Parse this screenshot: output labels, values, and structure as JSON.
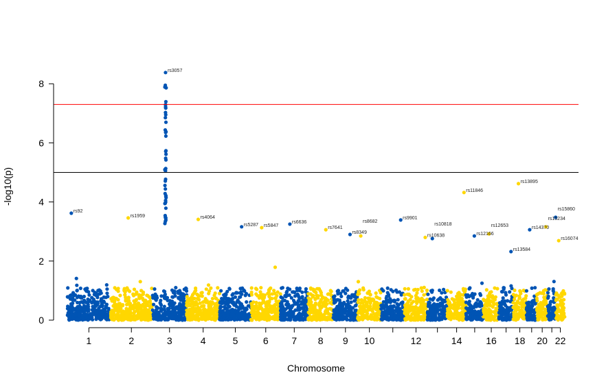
{
  "chart_data": {
    "type": "scatter",
    "subtype": "manhattan",
    "title": "",
    "xlabel": "Chromosome",
    "ylabel": "-log10(p)",
    "ylim": [
      0,
      8.4
    ],
    "yticks": [
      0,
      2,
      4,
      6,
      8
    ],
    "xtick_labels": [
      "1",
      "2",
      "3",
      "4",
      "5",
      "6",
      "7",
      "8",
      "9",
      "10",
      "12",
      "14",
      "16",
      "18",
      "20",
      "22"
    ],
    "chromosomes": [
      {
        "chr": 1,
        "length_mb": 249
      },
      {
        "chr": 2,
        "length_mb": 243
      },
      {
        "chr": 3,
        "length_mb": 198
      },
      {
        "chr": 4,
        "length_mb": 191
      },
      {
        "chr": 5,
        "length_mb": 181
      },
      {
        "chr": 6,
        "length_mb": 171
      },
      {
        "chr": 7,
        "length_mb": 159
      },
      {
        "chr": 8,
        "length_mb": 146
      },
      {
        "chr": 9,
        "length_mb": 141
      },
      {
        "chr": 10,
        "length_mb": 136
      },
      {
        "chr": 11,
        "length_mb": 135
      },
      {
        "chr": 12,
        "length_mb": 133
      },
      {
        "chr": 13,
        "length_mb": 115
      },
      {
        "chr": 14,
        "length_mb": 107
      },
      {
        "chr": 15,
        "length_mb": 102
      },
      {
        "chr": 16,
        "length_mb": 90
      },
      {
        "chr": 17,
        "length_mb": 81
      },
      {
        "chr": 18,
        "length_mb": 78
      },
      {
        "chr": 19,
        "length_mb": 59
      },
      {
        "chr": 20,
        "length_mb": 63
      },
      {
        "chr": 21,
        "length_mb": 48
      },
      {
        "chr": 22,
        "length_mb": 51
      }
    ],
    "colors": {
      "odd": "#0054b4",
      "even": "#ffd700",
      "genomewide_line": "#ff0000",
      "suggestive_line": "#000000"
    },
    "thresholds": {
      "genomewide": 7.3,
      "suggestive": 5.0
    },
    "annotated_snps": [
      {
        "label": "rs92",
        "chr": 1,
        "pos_mb": 23,
        "logp": 3.62
      },
      {
        "label": "rs1959",
        "chr": 2,
        "pos_mb": 103,
        "logp": 3.46
      },
      {
        "label": "rs3057",
        "chr": 3,
        "pos_mb": 76,
        "logp": 8.38
      },
      {
        "label": "rs4064",
        "chr": 4,
        "pos_mb": 67,
        "logp": 3.41
      },
      {
        "label": "rs5287",
        "chr": 5,
        "pos_mb": 127,
        "logp": 3.16
      },
      {
        "label": "rs5847",
        "chr": 6,
        "pos_mb": 62,
        "logp": 3.13
      },
      {
        "label": "rs6636",
        "chr": 7,
        "pos_mb": 54,
        "logp": 3.25
      },
      {
        "label": "rs7641",
        "chr": 8,
        "pos_mb": 103,
        "logp": 3.06
      },
      {
        "label": "rs8349",
        "chr": 9,
        "pos_mb": 97,
        "logp": 2.9
      },
      {
        "label": "rs8682",
        "chr": 10,
        "pos_mb": 18,
        "logp": 2.85
      },
      {
        "label": "rs9901",
        "chr": 11,
        "pos_mb": 113,
        "logp": 3.39
      },
      {
        "label": "rs10638",
        "chr": 12,
        "pos_mb": 120,
        "logp": 2.8
      },
      {
        "label": "rs10818",
        "chr": 13,
        "pos_mb": 28,
        "logp": 2.76
      },
      {
        "label": "rs11846",
        "chr": 14,
        "pos_mb": 96,
        "logp": 4.32
      },
      {
        "label": "rs12166",
        "chr": 15,
        "pos_mb": 49,
        "logp": 2.85
      },
      {
        "label": "rs12653",
        "chr": 16,
        "pos_mb": 32,
        "logp": 2.92
      },
      {
        "label": "rs13584",
        "chr": 17,
        "pos_mb": 69,
        "logp": 2.32
      },
      {
        "label": "rs13895",
        "chr": 18,
        "pos_mb": 31,
        "logp": 4.62
      },
      {
        "label": "rs14370",
        "chr": 19,
        "pos_mb": 18,
        "logp": 3.06
      },
      {
        "label": "rs15234",
        "chr": 20,
        "pos_mb": 53,
        "logp": 3.16
      },
      {
        "label": "rs15860",
        "chr": 21,
        "pos_mb": 46,
        "logp": 3.48
      },
      {
        "label": "rs16074",
        "chr": 22,
        "pos_mb": 16,
        "logp": 2.69
      }
    ]
  }
}
